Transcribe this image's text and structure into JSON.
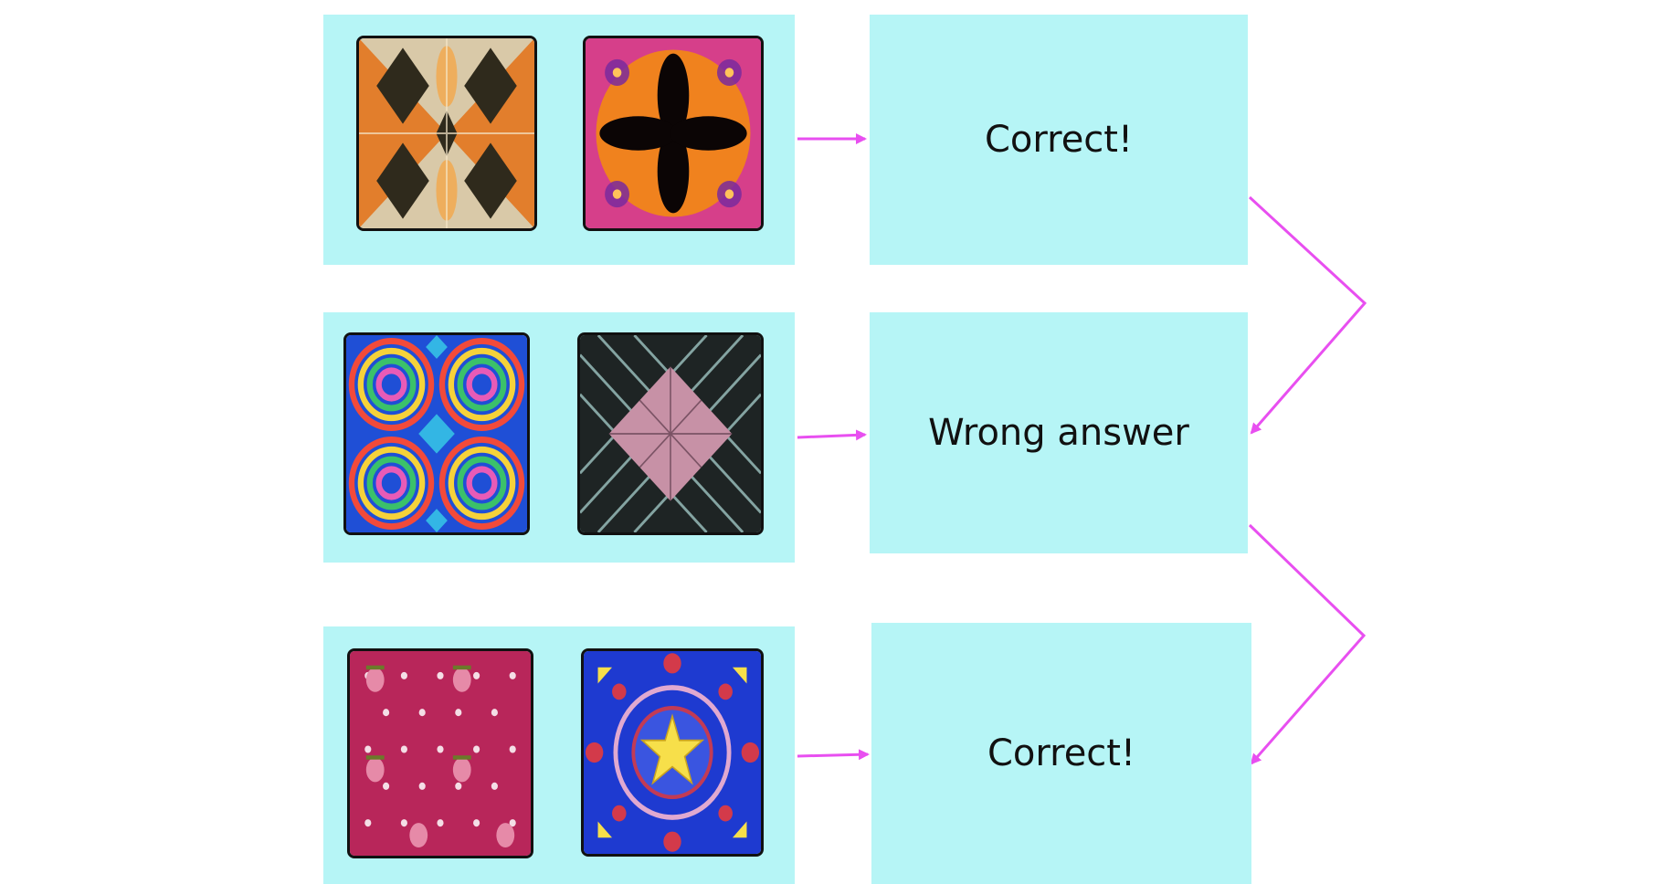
{
  "rows": [
    {
      "images": [
        "orange-mirrored-pattern",
        "orange-fractal-flower"
      ],
      "result": "Correct!"
    },
    {
      "images": [
        "rainbow-concentric-rings",
        "pink-diamond-on-grid"
      ],
      "result": "Wrong answer"
    },
    {
      "images": [
        "pink-faces-tessellation",
        "blue-star-kaleidoscope"
      ],
      "result": "Correct!"
    }
  ],
  "colors": {
    "panel": "#b6f5f6",
    "arrow": "#e84ff0"
  }
}
